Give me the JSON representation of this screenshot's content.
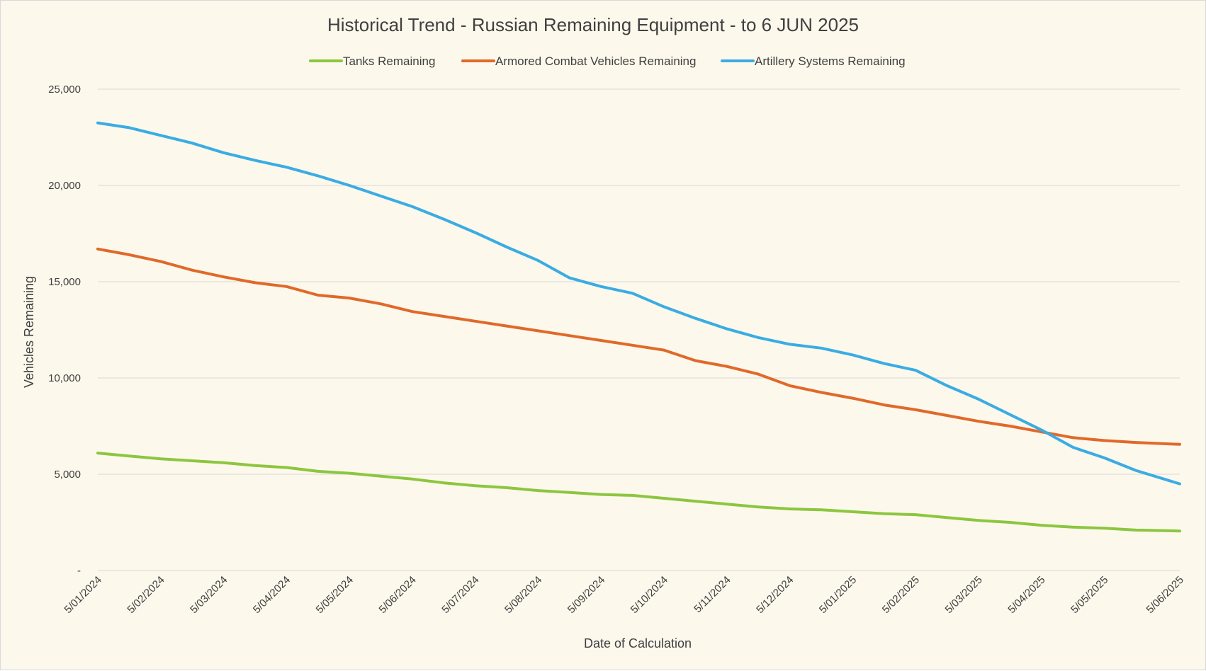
{
  "chart_data": {
    "type": "line",
    "title": "Historical Trend - Russian Remaining Equipment - to 6 JUN 2025",
    "xlabel": "Date of Calculation",
    "ylabel": "Vehicles Remaining",
    "ylim": [
      0,
      25000
    ],
    "y_ticks": [
      0,
      5000,
      10000,
      15000,
      20000,
      25000
    ],
    "y_tick_labels": [
      "-",
      "5,000",
      "10,000",
      "15,000",
      "20,000",
      "25,000"
    ],
    "x_range_months": [
      0,
      17.2
    ],
    "x_tick_labels": [
      "5/01/2024",
      "5/02/2024",
      "5/03/2024",
      "5/04/2024",
      "5/05/2024",
      "5/06/2024",
      "5/07/2024",
      "5/08/2024",
      "5/09/2024",
      "5/10/2024",
      "5/11/2024",
      "5/12/2024",
      "5/01/2025",
      "5/02/2025",
      "5/03/2025",
      "5/04/2025",
      "5/05/2025",
      "5/06/2025"
    ],
    "x_tick_positions_months": [
      0,
      1,
      2,
      3,
      4,
      5,
      6,
      7,
      8,
      9,
      10,
      11,
      12,
      13,
      14,
      15,
      16,
      17.2
    ],
    "grid": true,
    "legend_position": "top-center",
    "x": [
      0,
      0.5,
      1,
      1.5,
      2,
      2.5,
      3,
      3.5,
      4,
      4.5,
      5,
      5.5,
      6,
      6.5,
      7,
      7.5,
      8,
      8.5,
      9,
      9.5,
      10,
      10.5,
      11,
      11.5,
      12,
      12.5,
      13,
      13.5,
      14,
      14.5,
      15,
      15.5,
      16,
      16.5,
      17.2
    ],
    "series": [
      {
        "name": "Tanks Remaining",
        "color": "#8cc63f",
        "values": [
          6100,
          5950,
          5800,
          5700,
          5600,
          5450,
          5350,
          5150,
          5050,
          4900,
          4750,
          4550,
          4400,
          4300,
          4150,
          4050,
          3950,
          3900,
          3750,
          3600,
          3450,
          3300,
          3200,
          3150,
          3050,
          2950,
          2900,
          2750,
          2600,
          2500,
          2350,
          2250,
          2200,
          2100,
          2050
        ]
      },
      {
        "name": "Armored Combat Vehicles Remaining",
        "color": "#e0692a",
        "values": [
          16700,
          16400,
          16050,
          15600,
          15250,
          14950,
          14750,
          14300,
          14150,
          13850,
          13450,
          13200,
          12950,
          12700,
          12450,
          12200,
          11950,
          11700,
          11450,
          10900,
          10600,
          10200,
          9600,
          9250,
          8950,
          8600,
          8350,
          8050,
          7750,
          7500,
          7200,
          6900,
          6750,
          6650,
          6550
        ]
      },
      {
        "name": "Artillery Systems Remaining",
        "color": "#3aace3",
        "values": [
          23250,
          23000,
          22600,
          22200,
          21700,
          21300,
          20950,
          20500,
          20000,
          19450,
          18900,
          18250,
          17550,
          16800,
          16100,
          15200,
          14750,
          14400,
          13700,
          13100,
          12550,
          12100,
          11750,
          11550,
          11200,
          10750,
          10400,
          9600,
          8900,
          8100,
          7300,
          6400,
          5850,
          5200,
          4500
        ]
      }
    ]
  }
}
